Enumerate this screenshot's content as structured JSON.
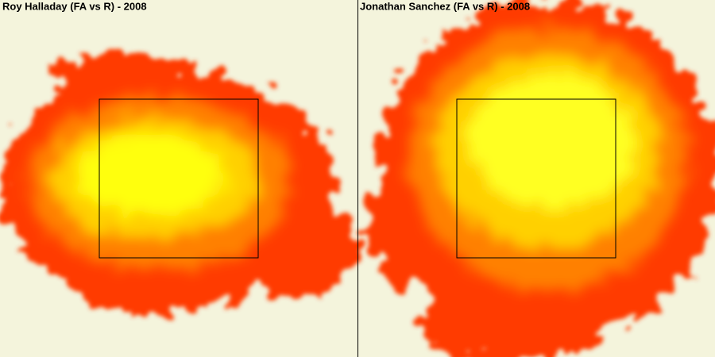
{
  "panels": [
    {
      "title": "Roy Halladay (FA vs R) - 2008"
    },
    {
      "title": "Jonathan Sanchez (FA vs R) - 2008"
    }
  ]
}
